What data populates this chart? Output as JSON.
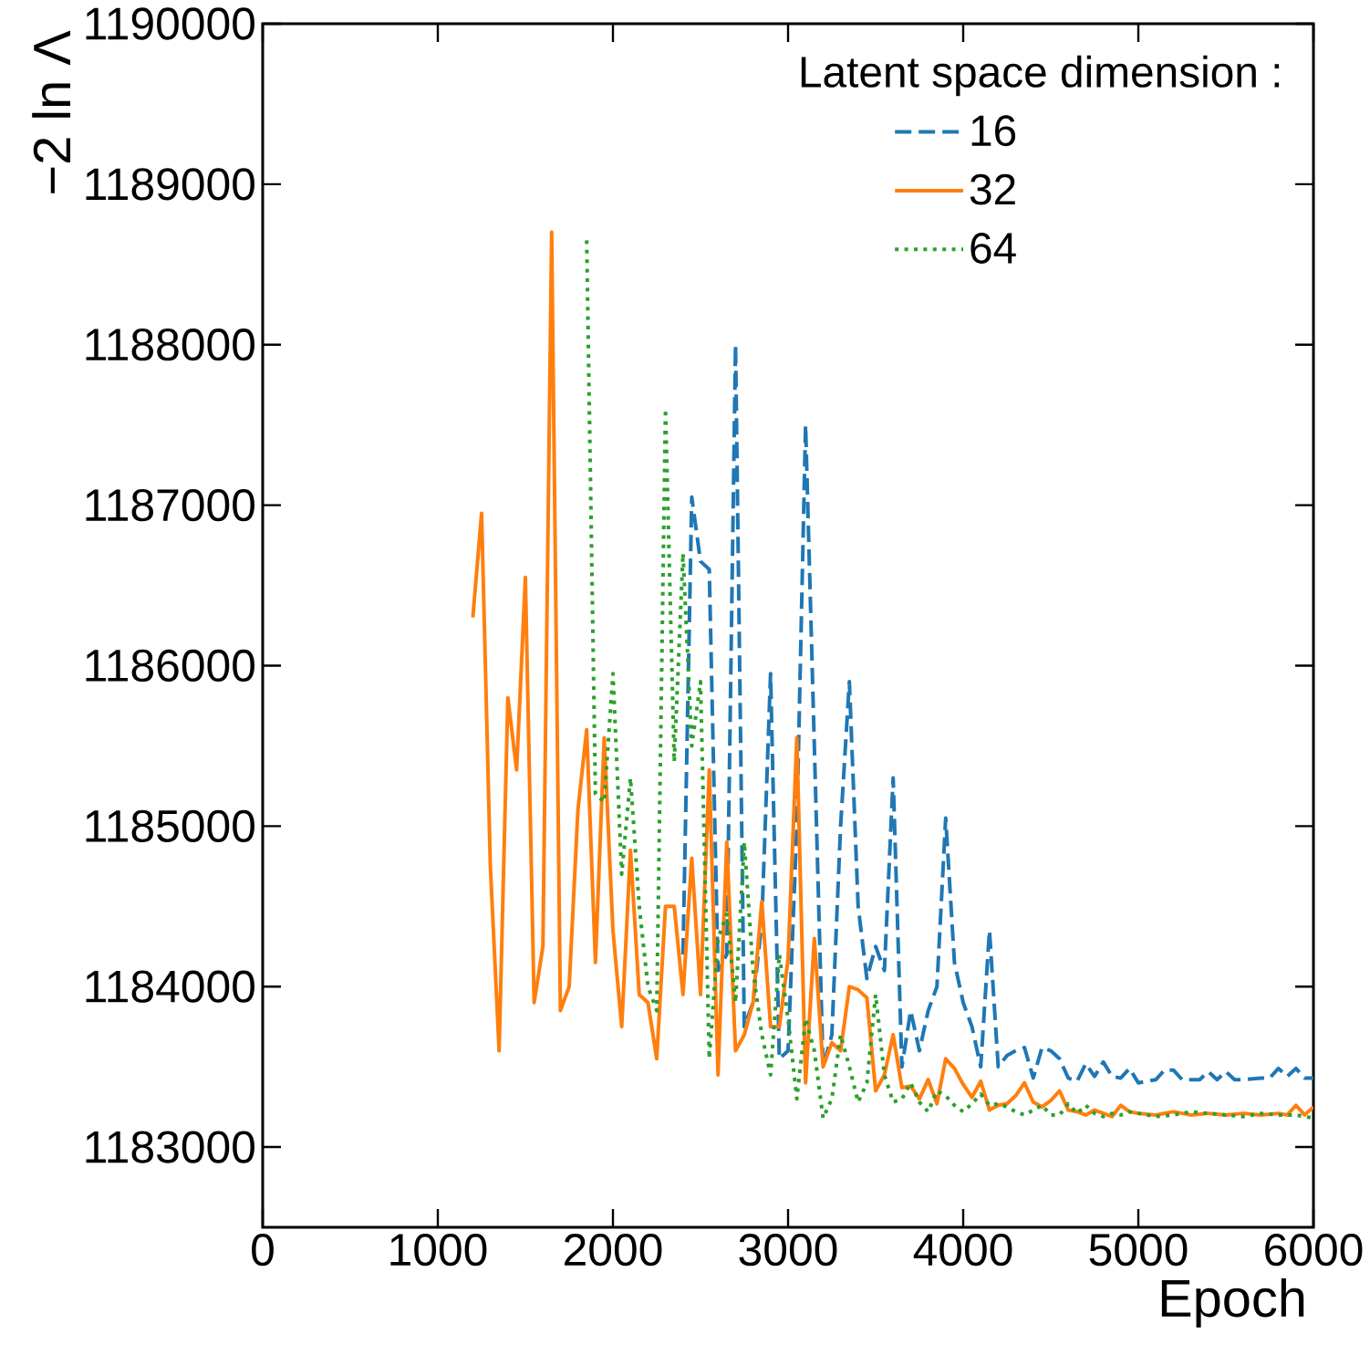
{
  "chart_data": {
    "type": "line",
    "xlabel": "Epoch",
    "ylabel": "−2 ln Λ",
    "legend_title": "Latent space dimension :",
    "xlim": [
      0,
      6000
    ],
    "ylim": [
      1182500,
      1190000
    ],
    "xticks": [
      0,
      1000,
      2000,
      3000,
      4000,
      5000,
      6000
    ],
    "yticks": [
      1183000,
      1184000,
      1185000,
      1186000,
      1187000,
      1188000,
      1189000,
      1190000
    ],
    "legend": "top right",
    "grid": false,
    "series": [
      {
        "name": "16",
        "color": "#1f77b4",
        "line_style": "dashed",
        "x": [
          2400,
          2450,
          2500,
          2550,
          2600,
          2650,
          2700,
          2750,
          2800,
          2850,
          2900,
          2950,
          3000,
          3050,
          3100,
          3150,
          3200,
          3250,
          3300,
          3350,
          3400,
          3450,
          3500,
          3550,
          3600,
          3650,
          3700,
          3750,
          3800,
          3850,
          3900,
          3950,
          4000,
          4050,
          4100,
          4150,
          4200,
          4250,
          4300,
          4350,
          4400,
          4450,
          4500,
          4550,
          4600,
          4650,
          4700,
          4750,
          4800,
          4850,
          4900,
          4950,
          5000,
          5050,
          5100,
          5150,
          5200,
          5250,
          5300,
          5350,
          5400,
          5450,
          5500,
          5550,
          5600,
          5700,
          5750,
          5800,
          5850,
          5900,
          5950,
          6000
        ],
        "values": [
          1184200,
          1187050,
          1186650,
          1186600,
          1184100,
          1184200,
          1188000,
          1183750,
          1183900,
          1184400,
          1185950,
          1183550,
          1183600,
          1185000,
          1187500,
          1185500,
          1183500,
          1183700,
          1185000,
          1185900,
          1184500,
          1184050,
          1184250,
          1184100,
          1185300,
          1183500,
          1183850,
          1183600,
          1183850,
          1184000,
          1185050,
          1184150,
          1183900,
          1183750,
          1183500,
          1184350,
          1183500,
          1183570,
          1183600,
          1183620,
          1183430,
          1183620,
          1183600,
          1183550,
          1183430,
          1183410,
          1183520,
          1183440,
          1183530,
          1183440,
          1183430,
          1183490,
          1183400,
          1183410,
          1183420,
          1183480,
          1183480,
          1183420,
          1183420,
          1183420,
          1183470,
          1183420,
          1183470,
          1183420,
          1183420,
          1183430,
          1183430,
          1183490,
          1183440,
          1183490,
          1183430,
          1183430
        ]
      },
      {
        "name": "32",
        "color": "#ff7f0e",
        "line_style": "solid",
        "x": [
          1200,
          1250,
          1300,
          1350,
          1400,
          1450,
          1500,
          1550,
          1600,
          1650,
          1700,
          1750,
          1800,
          1850,
          1900,
          1950,
          2000,
          2050,
          2100,
          2150,
          2200,
          2250,
          2300,
          2350,
          2400,
          2450,
          2500,
          2550,
          2600,
          2650,
          2700,
          2750,
          2800,
          2850,
          2900,
          2950,
          3000,
          3050,
          3100,
          3150,
          3200,
          3250,
          3300,
          3350,
          3400,
          3450,
          3500,
          3550,
          3600,
          3650,
          3700,
          3750,
          3800,
          3850,
          3900,
          3950,
          4000,
          4050,
          4100,
          4150,
          4200,
          4250,
          4300,
          4350,
          4400,
          4450,
          4500,
          4550,
          4600,
          4650,
          4700,
          4750,
          4800,
          4850,
          4900,
          4950,
          5000,
          5100,
          5200,
          5300,
          5400,
          5500,
          5600,
          5700,
          5800,
          5850,
          5900,
          5950,
          6000
        ],
        "values": [
          1186300,
          1186950,
          1184750,
          1183600,
          1185800,
          1185350,
          1186550,
          1183900,
          1184250,
          1188700,
          1183850,
          1184000,
          1185100,
          1185600,
          1184150,
          1185550,
          1184350,
          1183750,
          1184850,
          1183950,
          1183900,
          1183550,
          1184500,
          1184500,
          1183950,
          1184800,
          1183950,
          1185350,
          1183450,
          1184900,
          1183600,
          1183700,
          1183900,
          1184530,
          1183750,
          1183750,
          1184170,
          1185550,
          1183400,
          1184300,
          1183500,
          1183650,
          1183600,
          1184000,
          1183980,
          1183930,
          1183350,
          1183450,
          1183700,
          1183370,
          1183380,
          1183300,
          1183420,
          1183270,
          1183550,
          1183490,
          1183390,
          1183310,
          1183410,
          1183230,
          1183260,
          1183270,
          1183320,
          1183400,
          1183280,
          1183250,
          1183290,
          1183350,
          1183230,
          1183220,
          1183200,
          1183230,
          1183210,
          1183190,
          1183260,
          1183220,
          1183210,
          1183200,
          1183220,
          1183200,
          1183210,
          1183200,
          1183210,
          1183200,
          1183210,
          1183200,
          1183260,
          1183200,
          1183250
        ]
      },
      {
        "name": "64",
        "color": "#2ca02c",
        "line_style": "dotted",
        "x": [
          1850,
          1900,
          1950,
          2000,
          2050,
          2100,
          2150,
          2200,
          2250,
          2300,
          2350,
          2400,
          2450,
          2500,
          2550,
          2600,
          2650,
          2700,
          2750,
          2800,
          2850,
          2900,
          2950,
          3000,
          3050,
          3100,
          3150,
          3200,
          3250,
          3300,
          3350,
          3400,
          3450,
          3500,
          3550,
          3600,
          3650,
          3700,
          3750,
          3800,
          3850,
          3900,
          3950,
          4000,
          4050,
          4100,
          4150,
          4200,
          4250,
          4300,
          4350,
          4400,
          4450,
          4500,
          4550,
          4600,
          4650,
          4700,
          4750,
          4800,
          4850,
          4900,
          4950,
          5000,
          5100,
          5200,
          5300,
          5400,
          5500,
          5600,
          5700,
          5800,
          5900,
          6000
        ],
        "values": [
          1188650,
          1185200,
          1185150,
          1185950,
          1184700,
          1185300,
          1184500,
          1184000,
          1183850,
          1187600,
          1185400,
          1186700,
          1185500,
          1185900,
          1183550,
          1184300,
          1184450,
          1183900,
          1184900,
          1184100,
          1183700,
          1183450,
          1184200,
          1183800,
          1183300,
          1183800,
          1183600,
          1183180,
          1183300,
          1183700,
          1183500,
          1183280,
          1183400,
          1183950,
          1183450,
          1183280,
          1183300,
          1183400,
          1183280,
          1183220,
          1183350,
          1183320,
          1183260,
          1183220,
          1183270,
          1183330,
          1183260,
          1183270,
          1183250,
          1183220,
          1183200,
          1183230,
          1183260,
          1183200,
          1183200,
          1183270,
          1183210,
          1183260,
          1183210,
          1183190,
          1183210,
          1183200,
          1183220,
          1183210,
          1183190,
          1183200,
          1183220,
          1183210,
          1183200,
          1183190,
          1183210,
          1183200,
          1183200,
          1183180
        ]
      }
    ]
  }
}
